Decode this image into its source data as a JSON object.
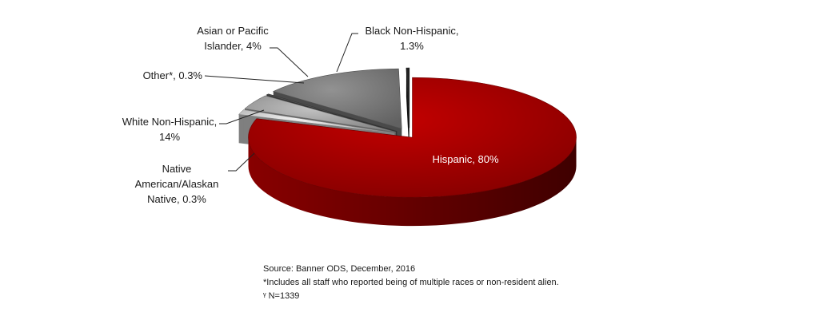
{
  "chart_data": {
    "type": "pie",
    "style": "3d-exploded",
    "slices": [
      {
        "label": "Hispanic",
        "value": 80,
        "display": "80%",
        "color": "#b50000"
      },
      {
        "label": "Black Non-Hispanic",
        "value": 1.3,
        "display": "1.3%",
        "color": "#e6e6e6"
      },
      {
        "label": "Asian or Pacific Islander",
        "value": 4,
        "display": "4%",
        "color": "#b4b4b4"
      },
      {
        "label": "Other*",
        "value": 0.3,
        "display": "0.3%",
        "color": "#5a5a5a"
      },
      {
        "label": "White Non-Hispanic",
        "value": 14,
        "display": "14%",
        "color": "#878787"
      },
      {
        "label": "Native American/Alaskan Native",
        "value": 0.3,
        "display": "0.3%",
        "color": "#262626"
      }
    ],
    "labels": {
      "hispanic": [
        "Hispanic, 80%"
      ],
      "black": [
        "Black Non-Hispanic,",
        "1.3%"
      ],
      "asian": [
        "Asian or Pacific",
        "Islander, 4%"
      ],
      "other": [
        "Other*, 0.3%"
      ],
      "white": [
        "White Non-Hispanic,",
        "14%"
      ],
      "native": [
        "Native",
        "American/Alaskan",
        "Native, 0.3%"
      ]
    }
  },
  "notes": {
    "source": "Source: Banner ODS, December, 2016",
    "footnote": "*Includes all staff who reported being of multiple races or non-resident alien.",
    "n": "ᵞ N=1339"
  }
}
